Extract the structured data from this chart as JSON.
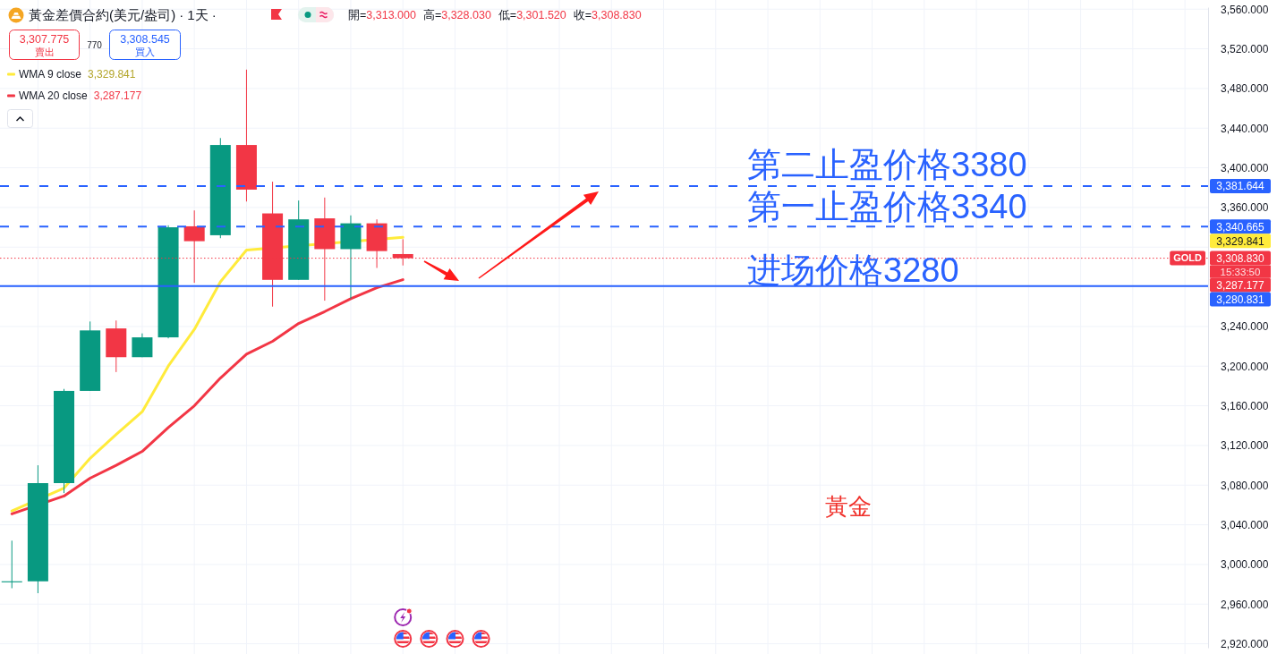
{
  "chart_data": {
    "type": "candlestick",
    "title": "黃金差價合約(美元/盎司)",
    "subtitle": "· 1天 ·",
    "categories": [
      null,
      null,
      null,
      null,
      null,
      null,
      null,
      null,
      null,
      null,
      null,
      null,
      null,
      null,
      null,
      null,
      null,
      null,
      null,
      null,
      null,
      null,
      null,
      null,
      null,
      null,
      null,
      null,
      null,
      null,
      null,
      null,
      null,
      null,
      null,
      null,
      null,
      null,
      null,
      null,
      null,
      null,
      null,
      null,
      null,
      null
    ],
    "ohlc": [
      [
        2982,
        3024,
        2976,
        2983
      ],
      [
        2983,
        3100,
        2971,
        3082
      ],
      [
        3082,
        3177,
        3072,
        3175
      ],
      [
        3175,
        3245,
        3175,
        3236
      ],
      [
        3238,
        3246,
        3194,
        3209
      ],
      [
        3209,
        3233,
        3209,
        3229
      ],
      [
        3229,
        3342,
        3228,
        3340
      ],
      [
        3341,
        3357,
        3284,
        3326
      ],
      [
        3332,
        3430,
        3329,
        3423
      ],
      [
        3423,
        3499,
        3366,
        3378
      ],
      [
        3354,
        3386,
        3260,
        3287
      ],
      [
        3287,
        3367,
        3287,
        3348
      ],
      [
        3349,
        3370,
        3266,
        3318
      ],
      [
        3318,
        3352,
        3268,
        3344
      ],
      [
        3344,
        3348,
        3299,
        3316
      ],
      [
        3313,
        3328.03,
        3301.52,
        3308.83
      ],
      null,
      null,
      null,
      null,
      null,
      null,
      null,
      null,
      null,
      null,
      null,
      null,
      null,
      null,
      null,
      null,
      null,
      null,
      null,
      null,
      null,
      null,
      null,
      null,
      null,
      null,
      null,
      null,
      null,
      null
    ],
    "colors": [
      "#089981",
      "#089981",
      "#089981",
      "#089981",
      "#f23645",
      "#089981",
      "#089981",
      "#f23645",
      "#089981",
      "#f23645",
      "#f23645",
      "#089981",
      "#f23645",
      "#089981",
      "#f23645",
      "#f23645",
      null,
      null,
      null,
      null,
      null,
      null,
      null,
      null,
      null,
      null,
      null,
      null,
      null,
      null,
      null,
      null,
      null,
      null,
      null,
      null,
      null,
      null,
      null,
      null,
      null,
      null,
      null,
      null,
      null,
      null
    ],
    "series": [
      {
        "name": "WMA 9 close",
        "type": "line",
        "color": "#ffeb3b",
        "values": [
          3054,
          null,
          3077,
          3107,
          3131,
          3154,
          3200,
          3237,
          3285,
          3317,
          null,
          null,
          null,
          null,
          null,
          3329.841,
          null,
          null,
          null,
          null,
          null,
          null,
          null,
          null,
          null,
          null,
          null,
          null,
          null,
          null,
          null,
          null,
          null,
          null,
          null,
          null,
          null,
          null,
          null,
          null,
          null,
          null,
          null,
          null,
          null,
          null
        ]
      },
      {
        "name": "WMA 20 close",
        "type": "line",
        "color": "#f23645",
        "values": [
          3051,
          null,
          3069,
          3087,
          3100,
          3114,
          3138,
          3160,
          3188,
          3212,
          3225,
          3243,
          3255,
          3268,
          3279,
          3287.177,
          null,
          null,
          null,
          null,
          null,
          null,
          null,
          null,
          null,
          null,
          null,
          null,
          null,
          null,
          null,
          null,
          null,
          null,
          null,
          null,
          null,
          null,
          null,
          null,
          null,
          null,
          null,
          null,
          null,
          null
        ]
      }
    ],
    "ylim": [
      2916,
      3562
    ],
    "yticks": [
      {
        "value": 2920,
        "label": "2,920.000"
      },
      {
        "value": 2960,
        "label": "2,960.000"
      },
      {
        "value": 3000,
        "label": "3,000.000"
      },
      {
        "value": 3040,
        "label": "3,040.000"
      },
      {
        "value": 3080,
        "label": "3,080.000"
      },
      {
        "value": 3120,
        "label": "3,120.000"
      },
      {
        "value": 3160,
        "label": "3,160.000"
      },
      {
        "value": 3200,
        "label": "3,200.000"
      },
      {
        "value": 3240,
        "label": "3,240.000"
      },
      {
        "value": 3280,
        "label": null
      },
      {
        "value": 3320,
        "label": null
      },
      {
        "value": 3360,
        "label": "3,360.000"
      },
      {
        "value": 3400,
        "label": "3,400.000"
      },
      {
        "value": 3440,
        "label": "3,440.000"
      },
      {
        "value": 3480,
        "label": "3,480.000"
      },
      {
        "value": 3520,
        "label": "3,520.000"
      },
      {
        "value": 3560,
        "label": "3,560.000"
      }
    ],
    "tick_labels": "y",
    "grid": true,
    "legend": "top left",
    "ref_lines": [
      {
        "axis": "y",
        "value": 3381.644,
        "label": "3,381.644",
        "color": "#2962ff",
        "line_style": "dashed"
      },
      {
        "axis": "y",
        "value": 3340.665,
        "label": "3,340.665",
        "color": "#2962ff",
        "line_style": "dashed"
      },
      {
        "axis": "y",
        "value": 3308.83,
        "label": "3,308.830",
        "color": "#f23645",
        "line_style": "dotted"
      },
      {
        "axis": "y",
        "value": 3280.831,
        "label": "3,280.831",
        "color": "#2962ff",
        "line_style": "solid"
      }
    ],
    "annotations": [
      "開=3,313.000",
      "高=3,328.030",
      "低=3,301.520",
      "收=3,308.830",
      "3,307.775",
      "賣出",
      "770",
      "3,308.545",
      "買入",
      "第二止盈价格3380",
      "第一止盈价格3340",
      "进场价格3280",
      "黃金",
      {
        "text": "GOLD",
        "y": 3308.83
      },
      "15:33:50",
      "3,329.841",
      "3,287.177",
      "3,329.841",
      "3,287.177"
    ]
  }
}
